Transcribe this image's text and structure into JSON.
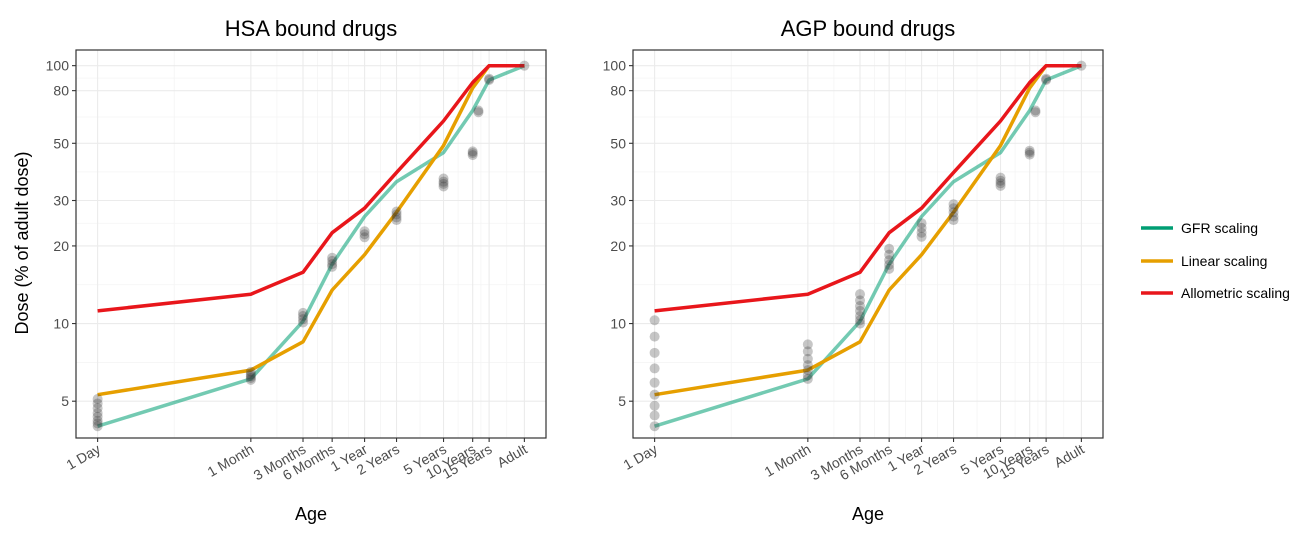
{
  "figure": {
    "ylabel": "Dose (% of adult dose)",
    "legend": {
      "position": "right",
      "items": [
        {
          "label": "GFR scaling",
          "color": "#009E73",
          "key": "gfr"
        },
        {
          "label": "Linear scaling",
          "color": "#E69F00",
          "key": "linear"
        },
        {
          "label": "Allometric scaling",
          "color": "#E8161B",
          "key": "allometric"
        }
      ]
    }
  },
  "chart_data": [
    {
      "type": "line",
      "title": "HSA bound drugs",
      "xlabel": "Age",
      "ylabel": "Dose (% of adult dose)",
      "y_scale": "log",
      "ylim": [
        3.6,
        115
      ],
      "y_ticks": [
        5,
        10,
        20,
        30,
        50,
        80,
        100
      ],
      "grid": true,
      "x_categories": [
        "1 Day",
        "1 Month",
        "3 Months",
        "6 Months",
        "1 Year",
        "2 Years",
        "5 Years",
        "10 Years",
        "15 Years",
        "Adult"
      ],
      "series": [
        {
          "name": "GFR scaling",
          "color": "#009E73",
          "values": [
            4.0,
            6.1,
            10.2,
            17.0,
            26.0,
            35.5,
            46.0,
            67.0,
            88.0,
            100
          ]
        },
        {
          "name": "Linear scaling",
          "color": "#E69F00",
          "values": [
            5.3,
            6.6,
            8.5,
            13.5,
            18.5,
            27.0,
            49.0,
            82.0,
            100,
            100
          ]
        },
        {
          "name": "Allometric scaling",
          "color": "#E8161B",
          "values": [
            11.2,
            13.0,
            15.8,
            22.5,
            28.0,
            38.5,
            61.0,
            86.0,
            100,
            100
          ]
        }
      ],
      "points": [
        {
          "x": "1 Day",
          "values": [
            5.1,
            4.9,
            4.7,
            4.5,
            4.35,
            4.2,
            4.1,
            4.0
          ]
        },
        {
          "x": "1 Month",
          "values": [
            6.5,
            6.35,
            6.25,
            6.15,
            6.05
          ]
        },
        {
          "x": "3 Months",
          "values": [
            11.0,
            10.7,
            10.4,
            10.1
          ]
        },
        {
          "x": "6 Months",
          "values": [
            18.0,
            17.5,
            17.0,
            16.6
          ]
        },
        {
          "x": "1 Year",
          "values": [
            22.8,
            22.2,
            21.6
          ]
        },
        {
          "x": "2 Years",
          "values": [
            27.2,
            26.5,
            25.8,
            25.2
          ]
        },
        {
          "x": "5 Years",
          "values": [
            36.5,
            35.5,
            34.8,
            34.0
          ]
        },
        {
          "x": "10 Years",
          "values": [
            46.5,
            45.8,
            45.0
          ]
        },
        {
          "x": "15 Years",
          "values": [
            67.0,
            66.0
          ]
        },
        {
          "x": "15 Years",
          "values": [
            89.0,
            88.0
          ]
        },
        {
          "x": "Adult",
          "values": [
            100
          ]
        }
      ]
    },
    {
      "type": "line",
      "title": "AGP bound drugs",
      "xlabel": "Age",
      "ylabel": "Dose (% of adult dose)",
      "y_scale": "log",
      "ylim": [
        3.6,
        115
      ],
      "y_ticks": [
        5,
        10,
        20,
        30,
        50,
        80,
        100
      ],
      "grid": true,
      "x_categories": [
        "1 Day",
        "1 Month",
        "3 Months",
        "6 Months",
        "1 Year",
        "2 Years",
        "5 Years",
        "10 Years",
        "15 Years",
        "Adult"
      ],
      "series": [
        {
          "name": "GFR scaling",
          "color": "#009E73",
          "values": [
            4.0,
            6.1,
            10.2,
            17.0,
            26.0,
            35.5,
            46.0,
            67.0,
            88.0,
            100
          ]
        },
        {
          "name": "Linear scaling",
          "color": "#E69F00",
          "values": [
            5.3,
            6.6,
            8.5,
            13.5,
            18.5,
            27.0,
            49.0,
            82.0,
            100,
            100
          ]
        },
        {
          "name": "Allometric scaling",
          "color": "#E8161B",
          "values": [
            11.2,
            13.0,
            15.8,
            22.5,
            28.0,
            38.5,
            61.0,
            86.0,
            100,
            100
          ]
        }
      ],
      "points": [
        {
          "x": "1 Day",
          "values": [
            10.3,
            8.9,
            7.7,
            6.7,
            5.9,
            5.3,
            4.8,
            4.4,
            4.0
          ]
        },
        {
          "x": "1 Month",
          "values": [
            8.3,
            7.8,
            7.3,
            6.9,
            6.6,
            6.3,
            6.1
          ]
        },
        {
          "x": "3 Months",
          "values": [
            13.0,
            12.3,
            11.7,
            11.2,
            10.7,
            10.3,
            10.0
          ]
        },
        {
          "x": "6 Months",
          "values": [
            19.5,
            18.5,
            17.6,
            16.9,
            16.3
          ]
        },
        {
          "x": "1 Year",
          "values": [
            24.5,
            23.5,
            22.5,
            21.7
          ]
        },
        {
          "x": "2 Years",
          "values": [
            29.0,
            28.0,
            27.0,
            26.0,
            25.2
          ]
        },
        {
          "x": "5 Years",
          "values": [
            36.8,
            35.8,
            35.0,
            34.2
          ]
        },
        {
          "x": "10 Years",
          "values": [
            46.8,
            46.0,
            45.2
          ]
        },
        {
          "x": "15 Years",
          "values": [
            67.0,
            66.0
          ]
        },
        {
          "x": "15 Years",
          "values": [
            89.0,
            88.0
          ]
        },
        {
          "x": "Adult",
          "values": [
            100
          ]
        }
      ]
    }
  ]
}
